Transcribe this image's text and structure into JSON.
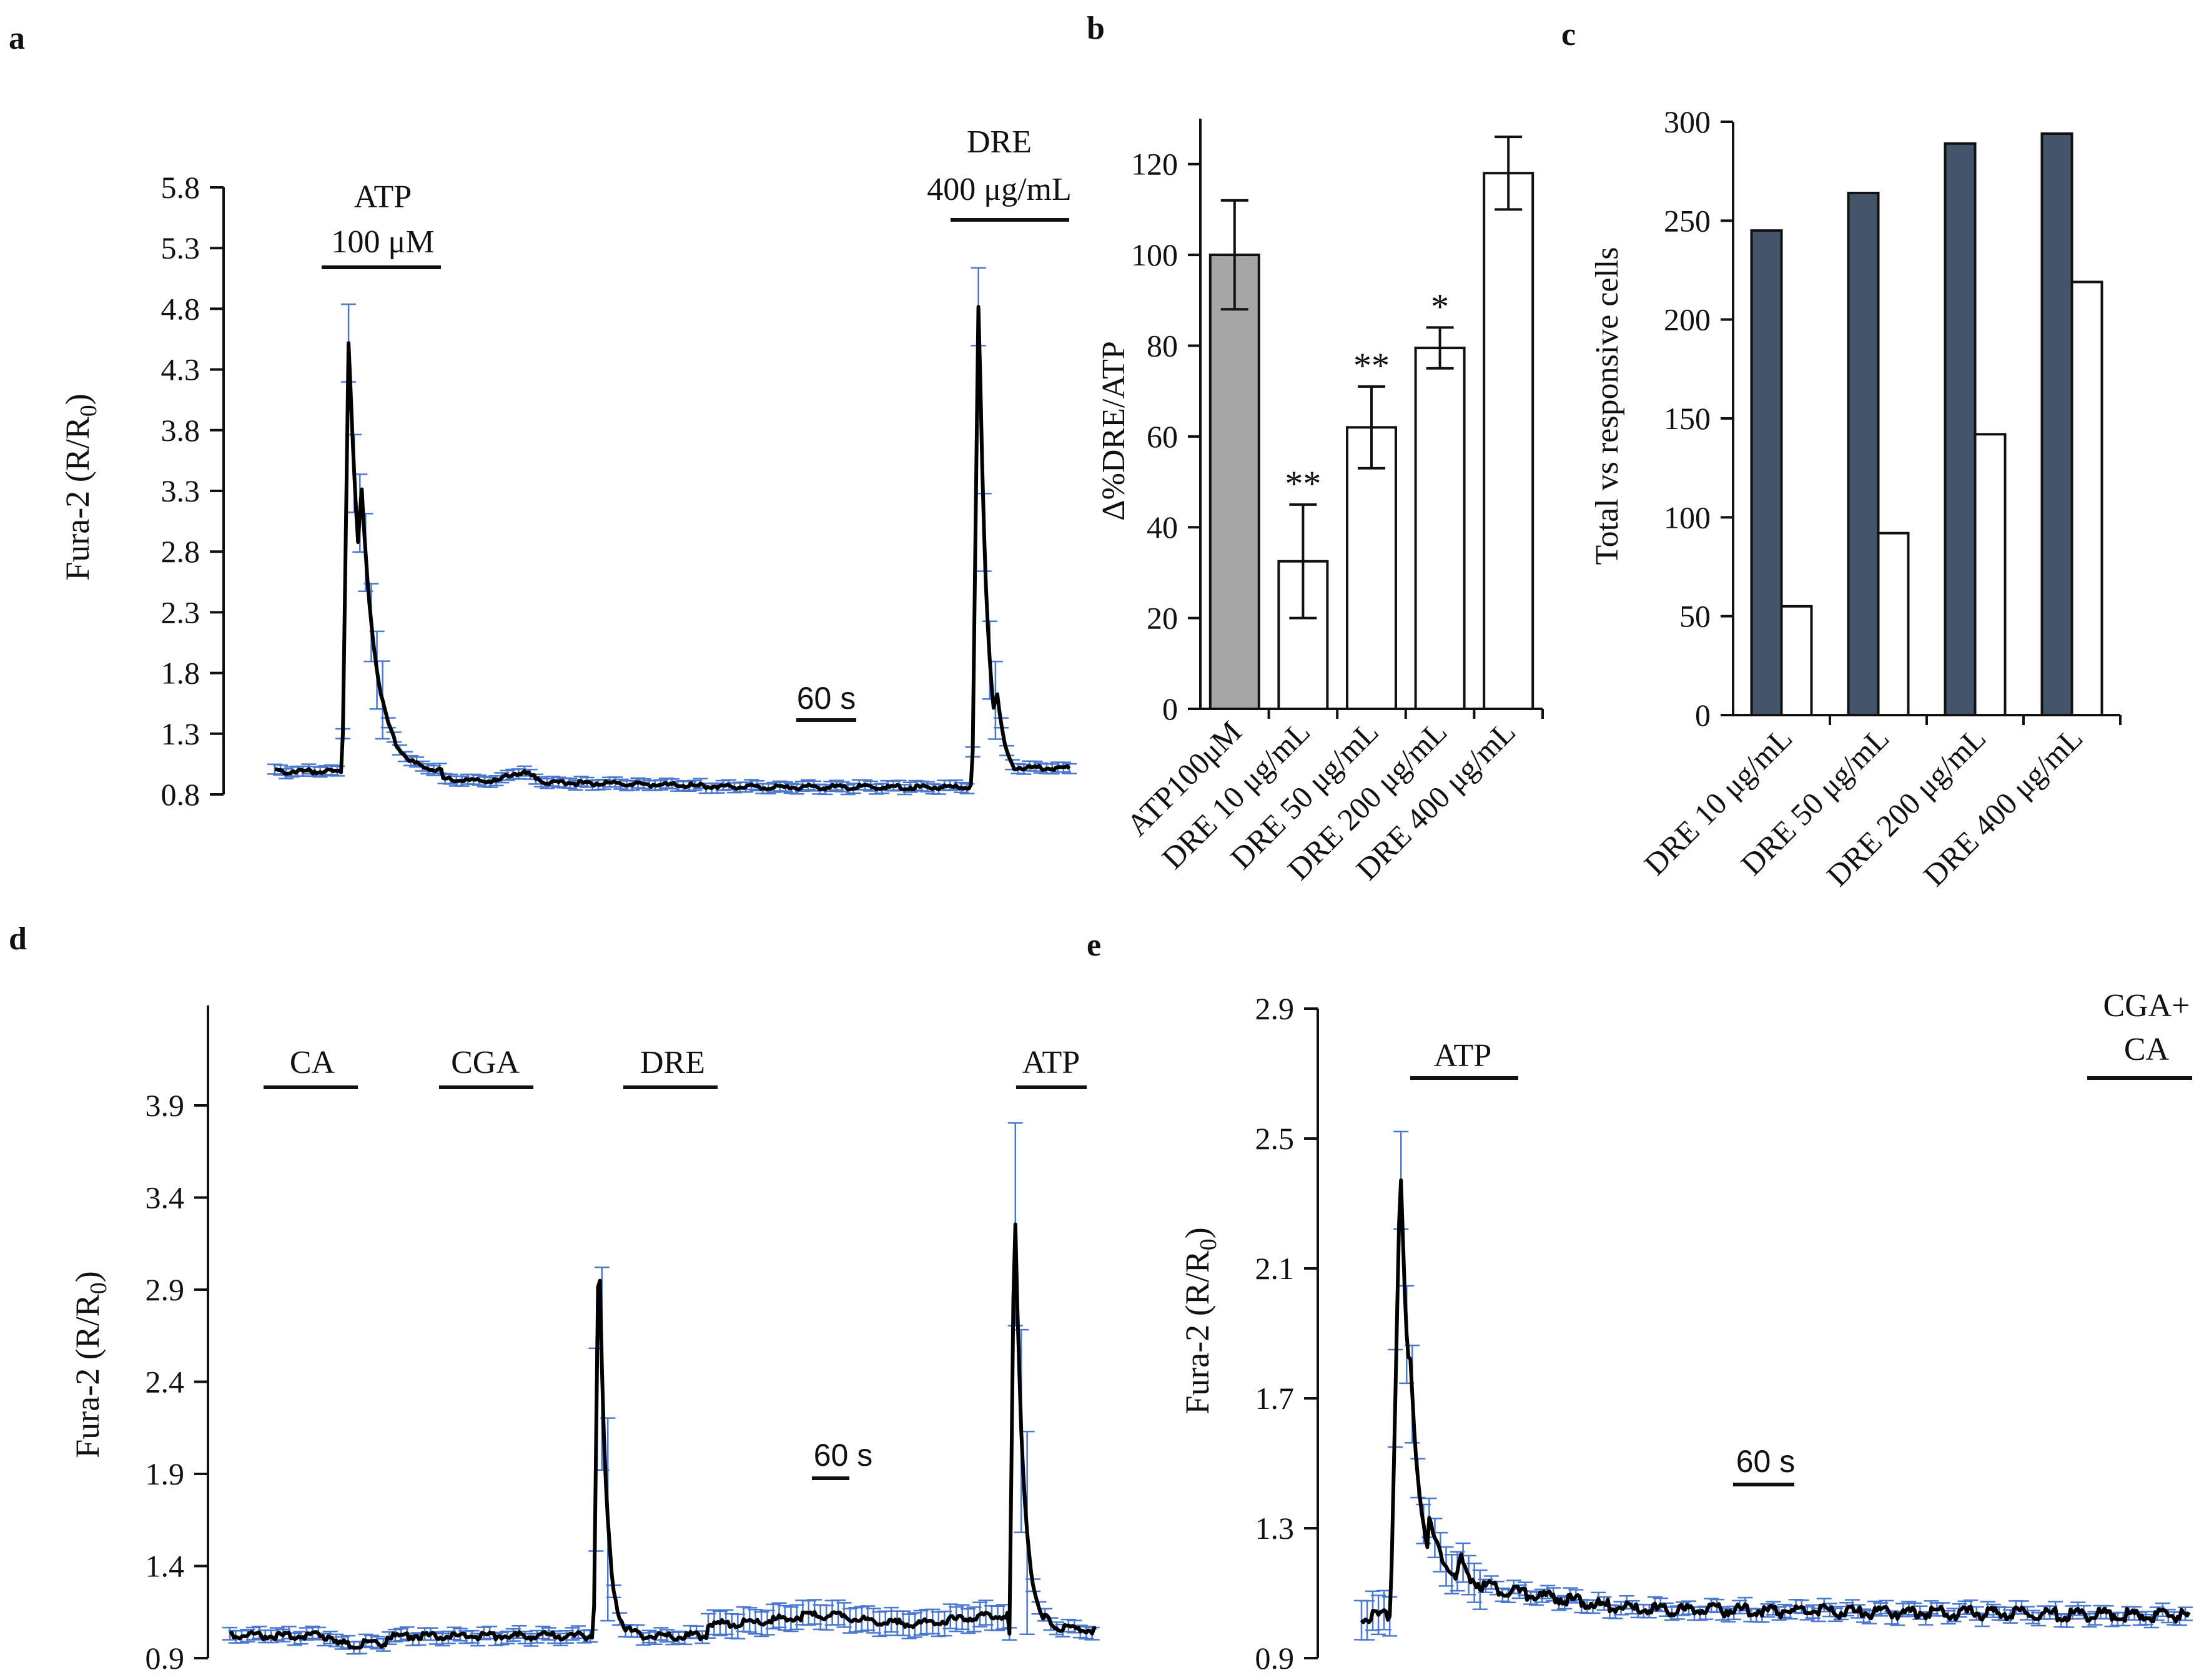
{
  "panel_labels": {
    "a": "a",
    "b": "b",
    "c": "c",
    "d": "d",
    "e": "e"
  },
  "colors": {
    "trace": "#000000",
    "error_bars": "#4a78d0",
    "bar_gray": "#a6a6a6",
    "bar_dark": "#44546a",
    "bar_white": "#ffffff"
  },
  "panel_a": {
    "ylabel_prefix": "Fura-2 (R/R",
    "ylabel_sub": "0",
    "ylabel_suffix": ")",
    "ticks": [
      "0.8",
      "1.3",
      "1.8",
      "2.3",
      "2.8",
      "3.3",
      "3.8",
      "4.3",
      "4.8",
      "5.3",
      "5.8"
    ],
    "stim1_line1": "ATP",
    "stim1_line2": "100 μM",
    "stim2_line1": "DRE",
    "stim2_line2": "400 μg/mL",
    "scale": "60 s"
  },
  "panel_d": {
    "ylabel_prefix": "Fura-2 (R/R",
    "ylabel_sub": "0",
    "ylabel_suffix": ")",
    "ticks": [
      "0.9",
      "1.4",
      "1.9",
      "2.4",
      "2.9",
      "3.4",
      "3.9"
    ],
    "stim_ca": "CA",
    "stim_cga": "CGA",
    "stim_dre": "DRE",
    "stim_atp": "ATP",
    "scale": "60 s"
  },
  "panel_e": {
    "ylabel_prefix": "Fura-2 (R/R",
    "ylabel_sub": "0",
    "ylabel_suffix": ")",
    "ticks": [
      "0.9",
      "1.3",
      "1.7",
      "2.1",
      "2.5",
      "2.9"
    ],
    "stim_atp": "ATP",
    "stim_mix_line1": "CGA+",
    "stim_mix_line2": "CA",
    "scale": "60 s"
  },
  "chart_data": [
    {
      "id": "b",
      "type": "bar",
      "ylabel": "Δ%DRE/ATP",
      "categories": [
        "ATP100μM",
        "DRE 10 μg/mL",
        "DRE 50 μg/mL",
        "DRE 200 μg/mL",
        "DRE 400 μg/mL"
      ],
      "values": [
        100,
        32.5,
        62,
        79.5,
        118
      ],
      "errors": [
        12,
        12.5,
        9,
        4.5,
        8
      ],
      "significance": [
        "",
        "**",
        "**",
        "*",
        ""
      ],
      "ylim": [
        0,
        130
      ],
      "yticks": [
        "0",
        "20",
        "40",
        "60",
        "80",
        "100",
        "120"
      ]
    },
    {
      "id": "c",
      "type": "bar",
      "ylabel": "Total vs responsive cells",
      "categories": [
        "DRE 10 μg/mL",
        "DRE 50 μg/mL",
        "DRE 200 μg/mL",
        "DRE 400 μg/mL"
      ],
      "series": [
        {
          "name": "Total",
          "values": [
            245,
            264,
            289,
            294
          ]
        },
        {
          "name": "Responsive",
          "values": [
            55,
            92,
            142,
            219
          ]
        }
      ],
      "ylim": [
        0,
        300
      ],
      "yticks": [
        "0",
        "50",
        "100",
        "150",
        "200",
        "250",
        "300"
      ]
    }
  ]
}
